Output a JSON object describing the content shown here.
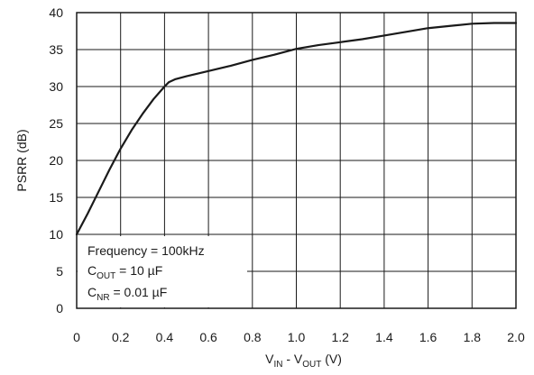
{
  "chart_data": {
    "type": "line",
    "title": "",
    "xlabel": {
      "main": "V",
      "sub1": "IN",
      "mid": " - ",
      "main2": "V",
      "sub2": "OUT",
      "unit": " (V)"
    },
    "ylabel": "PSRR (dB)",
    "xlim": [
      0,
      2.0
    ],
    "ylim": [
      0,
      40
    ],
    "x_ticks": [
      "0",
      "0.2",
      "0.4",
      "0.6",
      "0.8",
      "1.0",
      "1.2",
      "1.4",
      "1.6",
      "1.8",
      "2.0"
    ],
    "y_ticks": [
      "0",
      "5",
      "10",
      "15",
      "20",
      "25",
      "30",
      "35",
      "40"
    ],
    "grid": true,
    "series": [
      {
        "x": [
          0,
          0.05,
          0.1,
          0.15,
          0.2,
          0.25,
          0.3,
          0.35,
          0.4,
          0.42,
          0.45,
          0.5,
          0.6,
          0.7,
          0.8,
          0.9,
          1.0,
          1.1,
          1.2,
          1.3,
          1.4,
          1.5,
          1.6,
          1.7,
          1.8,
          1.9,
          2.0
        ],
        "y": [
          10.0,
          12.8,
          15.8,
          18.8,
          21.6,
          24.1,
          26.3,
          28.3,
          30.0,
          30.6,
          31.0,
          31.4,
          32.1,
          32.8,
          33.6,
          34.3,
          35.1,
          35.6,
          36.0,
          36.4,
          36.9,
          37.4,
          37.9,
          38.2,
          38.5,
          38.6,
          38.6
        ],
        "color": "#1a1a1a"
      }
    ],
    "annotation": {
      "line1": "Frequency = 100kHz",
      "line2": {
        "main": "C",
        "sub": "OUT",
        "rest": " = 10 µF"
      },
      "line3": {
        "main": "C",
        "sub": "NR",
        "rest": " = 0.01 µF"
      }
    }
  }
}
